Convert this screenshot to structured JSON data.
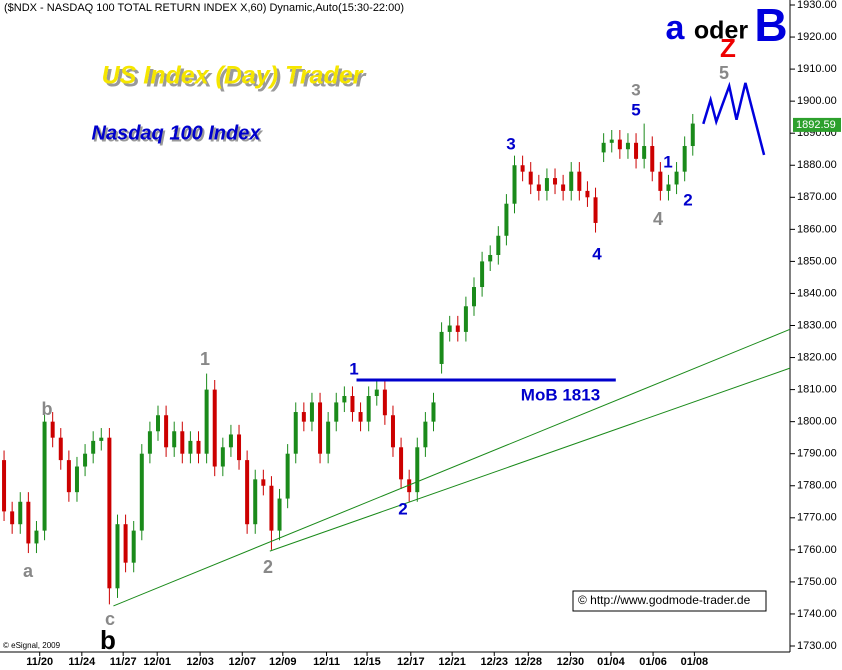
{
  "chart_data": {
    "type": "candlestick",
    "header": "($NDX - NASDAQ 100 TOTAL RETURN INDEX X,60) Dynamic,Auto(15:30-22:00)",
    "title": "US Index (Day) Trader",
    "subtitle": "Nasdaq 100 Index",
    "scenario": [
      "a",
      "oder",
      "B"
    ],
    "source": "© eSignal, 2009",
    "website": "© http://www.godmode-trader.de",
    "up_color": "#1a8a1a",
    "down_color": "#cc0000",
    "xlim": [
      -0.5,
      97
    ],
    "ylim": [
      1730,
      1930
    ],
    "xticks": [
      {
        "value": 4.4,
        "label": "11/20"
      },
      {
        "value": 9.6,
        "label": "11/24"
      },
      {
        "value": 14.7,
        "label": "11/27"
      },
      {
        "value": 18.9,
        "label": "12/01"
      },
      {
        "value": 24.2,
        "label": "12/03"
      },
      {
        "value": 29.4,
        "label": "12/07"
      },
      {
        "value": 34.4,
        "label": "12/09"
      },
      {
        "value": 39.8,
        "label": "12/11"
      },
      {
        "value": 44.8,
        "label": "12/15"
      },
      {
        "value": 50.2,
        "label": "12/17"
      },
      {
        "value": 55.3,
        "label": "12/21"
      },
      {
        "value": 60.5,
        "label": "12/23"
      },
      {
        "value": 64.7,
        "label": "12/28"
      },
      {
        "value": 69.9,
        "label": "12/30"
      },
      {
        "value": 74.9,
        "label": "01/04"
      },
      {
        "value": 80.1,
        "label": "01/06"
      },
      {
        "value": 85.2,
        "label": "01/08"
      }
    ],
    "yticks": [
      {
        "value": 1730,
        "label": "1730.00"
      },
      {
        "value": 1740,
        "label": "1740.00"
      },
      {
        "value": 1750,
        "label": "1750.00"
      },
      {
        "value": 1760,
        "label": "1760.00"
      },
      {
        "value": 1770,
        "label": "1770.00"
      },
      {
        "value": 1780,
        "label": "1780.00"
      },
      {
        "value": 1790,
        "label": "1790.00"
      },
      {
        "value": 1800,
        "label": "1800.00"
      },
      {
        "value": 1810,
        "label": "1810.00"
      },
      {
        "value": 1820,
        "label": "1820.00"
      },
      {
        "value": 1830,
        "label": "1830.00"
      },
      {
        "value": 1840,
        "label": "1840.00"
      },
      {
        "value": 1850,
        "label": "1850.00"
      },
      {
        "value": 1860,
        "label": "1860.00"
      },
      {
        "value": 1870,
        "label": "1870.00"
      },
      {
        "value": 1880,
        "label": "1880.00"
      },
      {
        "value": 1890,
        "label": "1890.00"
      },
      {
        "value": 1900,
        "label": "1900.00"
      },
      {
        "value": 1910,
        "label": "1910.00"
      },
      {
        "value": 1920,
        "label": "1920.00"
      },
      {
        "value": 1930,
        "label": "1930.00"
      }
    ],
    "last_price": 1892.59,
    "open": [
      1788,
      1772,
      1768,
      1775,
      1762,
      1766,
      1800,
      1795,
      1788,
      1778,
      1786,
      1790,
      1794,
      1795,
      1748,
      1768,
      1756,
      1766,
      1790,
      1797,
      1802,
      1792,
      1797,
      1790,
      1794,
      1790,
      1810,
      1786,
      1792,
      1796,
      1788,
      1768,
      1782,
      1780,
      1766,
      1776,
      1790,
      1803,
      1800,
      1806,
      1790,
      1800,
      1806,
      1808,
      1803,
      1800,
      1808,
      1810,
      1802,
      1792,
      1782,
      1778,
      1792,
      1800,
      1818,
      1828,
      1830,
      1828,
      1836,
      1842,
      1850,
      1852,
      1858,
      1868,
      1880,
      1878,
      1874,
      1872,
      1876,
      1874,
      1872,
      1878,
      1872,
      1870,
      1884,
      1887,
      1888,
      1885,
      1887,
      1882,
      1886,
      1878,
      1872,
      1874,
      1878,
      1886
    ],
    "high": [
      1791,
      1775,
      1778,
      1778,
      1769,
      1803,
      1803,
      1798,
      1791,
      1789,
      1793,
      1797,
      1798,
      1798,
      1771,
      1771,
      1769,
      1793,
      1800,
      1805,
      1805,
      1800,
      1800,
      1797,
      1797,
      1815,
      1813,
      1795,
      1799,
      1799,
      1791,
      1785,
      1785,
      1783,
      1779,
      1793,
      1806,
      1806,
      1809,
      1809,
      1803,
      1809,
      1811,
      1811,
      1806,
      1811,
      1813,
      1813,
      1805,
      1795,
      1785,
      1795,
      1803,
      1809,
      1831,
      1833,
      1833,
      1839,
      1845,
      1853,
      1855,
      1861,
      1871,
      1883,
      1883,
      1881,
      1877,
      1879,
      1879,
      1877,
      1881,
      1881,
      1875,
      1873,
      1890,
      1891,
      1891,
      1890,
      1890,
      1893,
      1889,
      1881,
      1877,
      1881,
      1889,
      1896
    ],
    "low": [
      1769,
      1765,
      1765,
      1759,
      1759,
      1763,
      1792,
      1785,
      1775,
      1775,
      1783,
      1787,
      1791,
      1743,
      1745,
      1753,
      1753,
      1763,
      1787,
      1794,
      1789,
      1789,
      1787,
      1787,
      1787,
      1787,
      1783,
      1783,
      1789,
      1785,
      1765,
      1765,
      1777,
      1760,
      1763,
      1773,
      1787,
      1797,
      1797,
      1787,
      1787,
      1797,
      1803,
      1800,
      1797,
      1797,
      1805,
      1799,
      1789,
      1779,
      1775,
      1775,
      1789,
      1797,
      1815,
      1825,
      1825,
      1825,
      1833,
      1839,
      1847,
      1849,
      1855,
      1865,
      1875,
      1871,
      1869,
      1869,
      1871,
      1869,
      1869,
      1869,
      1867,
      1859,
      1881,
      1884,
      1882,
      1882,
      1879,
      1879,
      1875,
      1869,
      1869,
      1871,
      1875,
      1883
    ],
    "close": [
      1772,
      1768,
      1775,
      1762,
      1766,
      1800,
      1795,
      1788,
      1778,
      1786,
      1790,
      1794,
      1795,
      1748,
      1768,
      1756,
      1766,
      1790,
      1797,
      1802,
      1792,
      1797,
      1790,
      1794,
      1790,
      1810,
      1786,
      1792,
      1796,
      1788,
      1768,
      1782,
      1780,
      1766,
      1776,
      1790,
      1803,
      1800,
      1806,
      1790,
      1800,
      1806,
      1808,
      1803,
      1800,
      1808,
      1810,
      1802,
      1792,
      1782,
      1778,
      1792,
      1800,
      1806,
      1828,
      1830,
      1828,
      1836,
      1842,
      1850,
      1852,
      1858,
      1868,
      1880,
      1878,
      1874,
      1872,
      1876,
      1874,
      1872,
      1878,
      1872,
      1870,
      1862,
      1887,
      1888,
      1885,
      1887,
      1882,
      1886,
      1878,
      1872,
      1874,
      1878,
      1886,
      1893
    ],
    "resistance": {
      "label": "MoB 1813",
      "value": 1813,
      "x": [
        43.5,
        75.5
      ],
      "color": "#0000cc"
    },
    "trendlines": [
      {
        "x": [
          13.5,
          97
        ],
        "y": [
          1742.5,
          1828.8
        ],
        "color": "#1a8a1a"
      },
      {
        "x": [
          32.8,
          97
        ],
        "y": [
          1759.6,
          1816.7
        ],
        "color": "#1a8a1a"
      }
    ],
    "projection": {
      "x": [
        86.3,
        87.2,
        87.9,
        88.6,
        89.5,
        90.4,
        91.5,
        93.8
      ],
      "y": [
        1892.9,
        1900.4,
        1893.6,
        1898.5,
        1904.7,
        1894.2,
        1905.7,
        1883.2
      ],
      "color": "#0000dd"
    },
    "annotations": [
      {
        "text": "a",
        "color": "#888888"
      },
      {
        "text": "b",
        "color": "#888888"
      },
      {
        "text": "c",
        "color": "#888888"
      },
      {
        "text": "b",
        "color": "#000000"
      },
      {
        "text": "1",
        "color": "#888888"
      },
      {
        "text": "2",
        "color": "#888888"
      },
      {
        "text": "1",
        "color": "#0000cc"
      },
      {
        "text": "2",
        "color": "#0000cc"
      },
      {
        "text": "3",
        "color": "#0000cc"
      },
      {
        "text": "4",
        "color": "#0000cc"
      },
      {
        "text": "3",
        "color": "#888888"
      },
      {
        "text": "5",
        "color": "#0000cc"
      },
      {
        "text": "1",
        "color": "#0000cc"
      },
      {
        "text": "2",
        "color": "#0000cc"
      },
      {
        "text": "4",
        "color": "#888888"
      },
      {
        "text": "5",
        "color": "#888888"
      },
      {
        "text": "Z",
        "color": "#ee0000"
      }
    ]
  }
}
